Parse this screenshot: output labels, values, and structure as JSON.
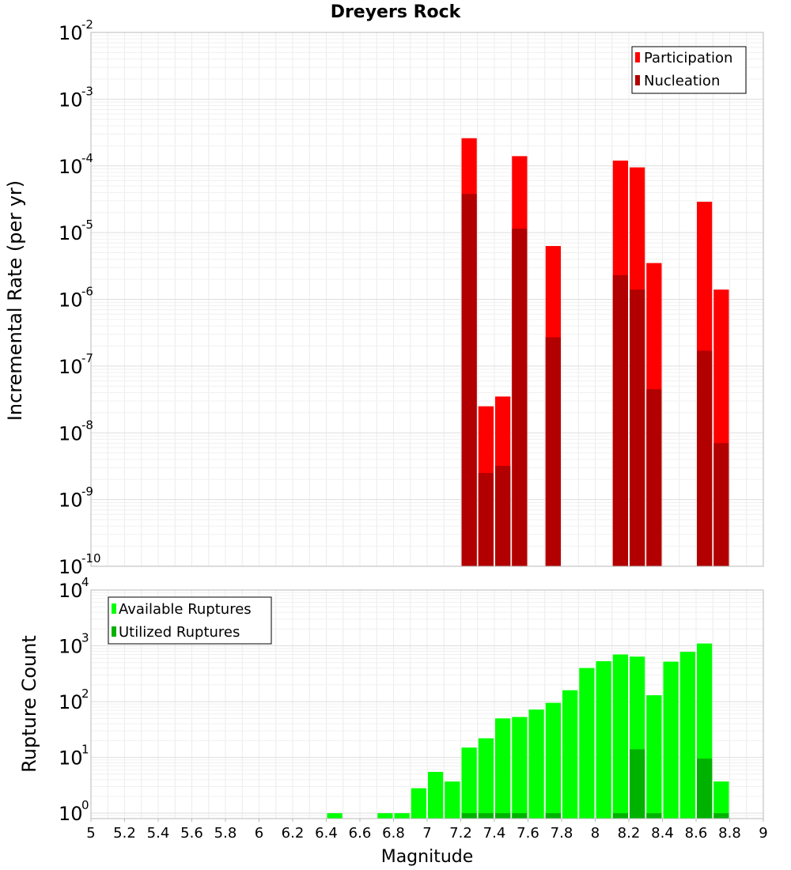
{
  "chart_data": [
    {
      "type": "bar",
      "title": "Dreyers Rock",
      "ylabel": "Incremental Rate (per yr)",
      "yscale": "log",
      "ylim": [
        1e-10,
        0.01
      ],
      "xlim": [
        5,
        9
      ],
      "grid": true,
      "legend_position": "top-right",
      "ytick_labels": [
        {
          "base": "10",
          "exp": "-10"
        },
        {
          "base": "10",
          "exp": "-9"
        },
        {
          "base": "10",
          "exp": "-8"
        },
        {
          "base": "10",
          "exp": "-7"
        },
        {
          "base": "10",
          "exp": "-6"
        },
        {
          "base": "10",
          "exp": "-5"
        },
        {
          "base": "10",
          "exp": "-4"
        },
        {
          "base": "10",
          "exp": "-3"
        },
        {
          "base": "10",
          "exp": "-2"
        }
      ],
      "x": [
        7.25,
        7.35,
        7.45,
        7.55,
        7.75,
        8.15,
        8.25,
        8.35,
        8.65,
        8.75
      ],
      "series": [
        {
          "name": "Participation",
          "color": "#ff0000",
          "values": [
            0.00026,
            2.5e-08,
            3.5e-08,
            0.00014,
            6.3e-06,
            0.00012,
            9.5e-05,
            3.5e-06,
            2.9e-05,
            1.4e-06
          ]
        },
        {
          "name": "Nucleation",
          "color": "#b20000",
          "values": [
            3.8e-05,
            2.5e-09,
            3.2e-09,
            1.15e-05,
            2.7e-07,
            2.3e-06,
            1.4e-06,
            4.5e-08,
            1.7e-07,
            7e-09
          ]
        }
      ]
    },
    {
      "type": "bar",
      "xlabel": "Magnitude",
      "ylabel": "Rupture Count",
      "yscale": "log",
      "ylim": [
        0.8,
        10000
      ],
      "xlim": [
        5,
        9
      ],
      "grid": true,
      "legend_position": "top-left",
      "xtick_labels": [
        "5",
        "5.2",
        "5.4",
        "5.6",
        "5.8",
        "6",
        "6.2",
        "6.4",
        "6.6",
        "6.8",
        "7",
        "7.2",
        "7.4",
        "7.6",
        "7.8",
        "8",
        "8.2",
        "8.4",
        "8.6",
        "8.8",
        "9"
      ],
      "ytick_labels": [
        {
          "base": "10",
          "exp": "0"
        },
        {
          "base": "10",
          "exp": "1"
        },
        {
          "base": "10",
          "exp": "2"
        },
        {
          "base": "10",
          "exp": "3"
        },
        {
          "base": "10",
          "exp": "4"
        }
      ],
      "series": [
        {
          "name": "Available Ruptures",
          "color": "#00ff00",
          "x": [
            6.45,
            6.75,
            6.85,
            6.95,
            7.05,
            7.15,
            7.25,
            7.35,
            7.45,
            7.55,
            7.65,
            7.75,
            7.85,
            7.95,
            8.05,
            8.15,
            8.25,
            8.35,
            8.45,
            8.55,
            8.65,
            8.75
          ],
          "values": [
            1,
            1,
            1,
            2.8,
            5.5,
            3.7,
            15,
            22,
            50,
            53,
            72,
            95,
            160,
            400,
            530,
            700,
            640,
            130,
            520,
            780,
            1100,
            3.7
          ]
        },
        {
          "name": "Utilized Ruptures",
          "color": "#00b200",
          "x": [
            7.25,
            7.35,
            7.45,
            7.55,
            7.75,
            8.15,
            8.25,
            8.35,
            8.65,
            8.75
          ],
          "values": [
            1,
            1,
            1,
            1,
            1,
            1,
            14,
            1,
            9.5,
            1
          ]
        }
      ]
    }
  ]
}
